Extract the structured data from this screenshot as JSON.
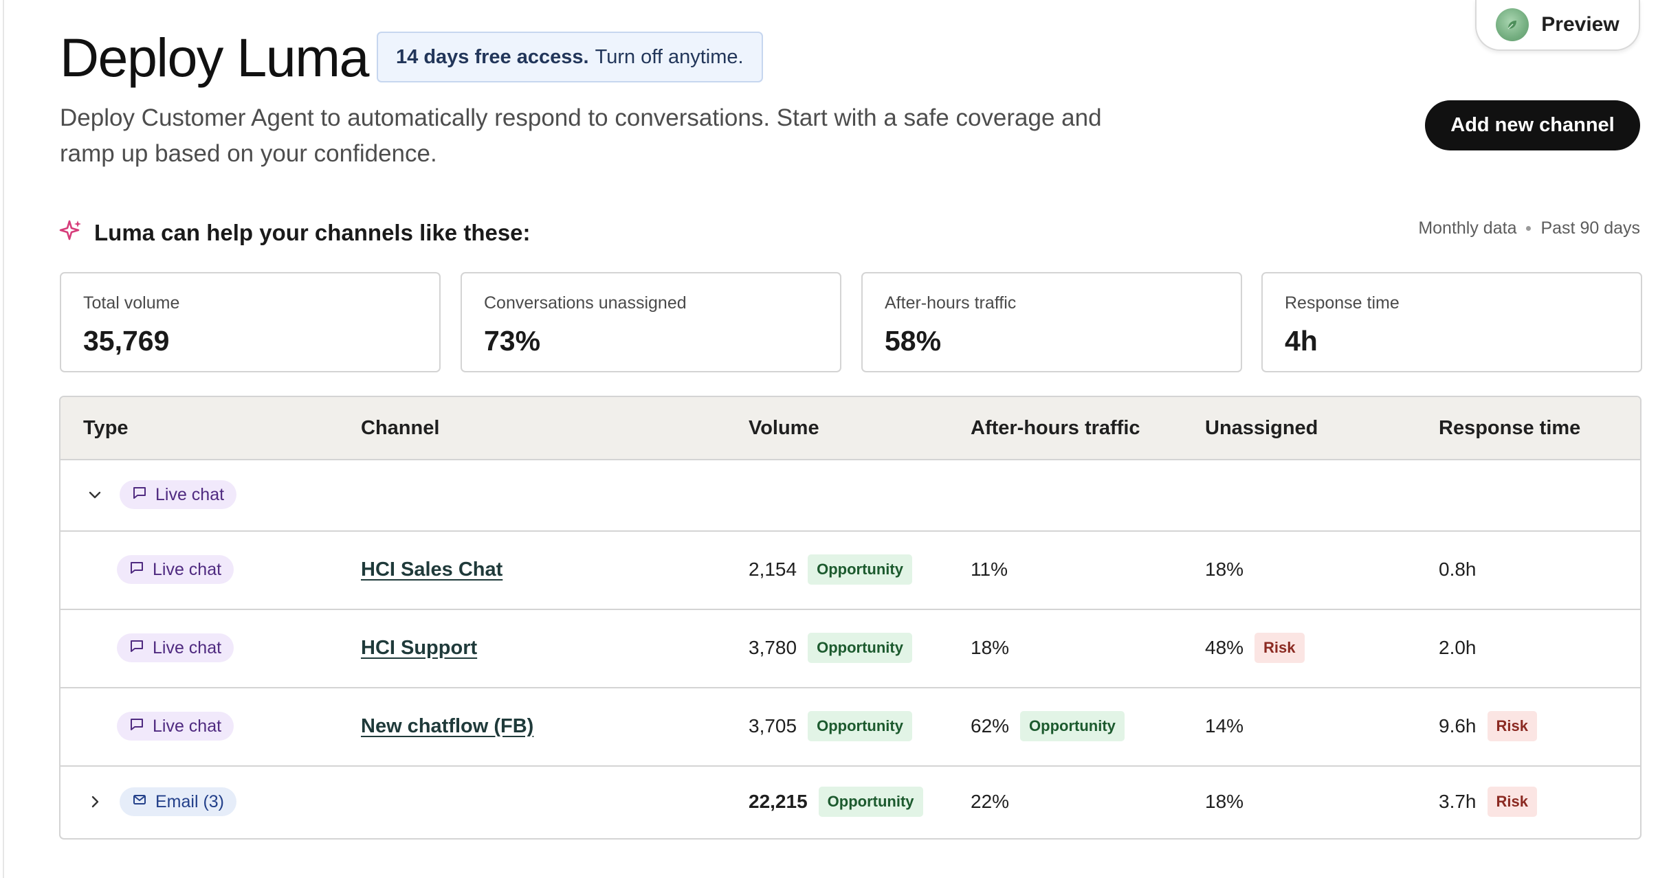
{
  "header": {
    "title": "Deploy Luma",
    "trial_badge_strong": "14 days free access.",
    "trial_badge_rest": "Turn off anytime.",
    "description": "Deploy Customer Agent to automatically respond to conversations. Start with a safe coverage and ramp up based on your confidence.",
    "preview_label": "Preview",
    "add_channel_label": "Add new channel"
  },
  "insights": {
    "title": "Luma can help your channels like these:",
    "meta_granularity": "Monthly data",
    "meta_range": "Past 90 days",
    "cards": [
      {
        "label": "Total volume",
        "value": "35,769"
      },
      {
        "label": "Conversations unassigned",
        "value": "73%"
      },
      {
        "label": "After-hours traffic",
        "value": "58%"
      },
      {
        "label": "Response time",
        "value": "4h"
      }
    ]
  },
  "table": {
    "columns": [
      "Type",
      "Channel",
      "Volume",
      "After-hours traffic",
      "Unassigned",
      "Response time"
    ],
    "groups": [
      {
        "type": "Live chat",
        "expanded": true,
        "rows": [
          {
            "type": "Live chat",
            "channel": "HCI Sales Chat",
            "volume": "2,154",
            "volume_tag": "Opportunity",
            "after_hours": "11%",
            "after_hours_tag": "",
            "unassigned": "18%",
            "unassigned_tag": "",
            "response": "0.8h",
            "response_tag": ""
          },
          {
            "type": "Live chat",
            "channel": "HCI Support",
            "volume": "3,780",
            "volume_tag": "Opportunity",
            "after_hours": "18%",
            "after_hours_tag": "",
            "unassigned": "48%",
            "unassigned_tag": "Risk",
            "response": "2.0h",
            "response_tag": ""
          },
          {
            "type": "Live chat",
            "channel": "New chatflow (FB)",
            "volume": "3,705",
            "volume_tag": "Opportunity",
            "after_hours": "62%",
            "after_hours_tag": "Opportunity",
            "unassigned": "14%",
            "unassigned_tag": "",
            "response": "9.6h",
            "response_tag": "Risk"
          }
        ]
      },
      {
        "type": "Email (3)",
        "expanded": false,
        "volume": "22,215",
        "volume_tag": "Opportunity",
        "after_hours": "22%",
        "unassigned": "18%",
        "response": "3.7h",
        "response_tag": "Risk"
      }
    ]
  },
  "colors": {
    "accent_sparkle": "#d63c7a",
    "opportunity_bg": "#e2f4e6",
    "risk_bg": "#fbe5e3",
    "chat_pill_bg": "#f1e9fb",
    "email_pill_bg": "#e6edf9",
    "primary_button": "#111111"
  },
  "icons": [
    "sparkle-icon",
    "chat-bubble-icon",
    "mail-icon",
    "chevron-down-icon",
    "chevron-right-icon",
    "leaf-avatar-icon"
  ]
}
